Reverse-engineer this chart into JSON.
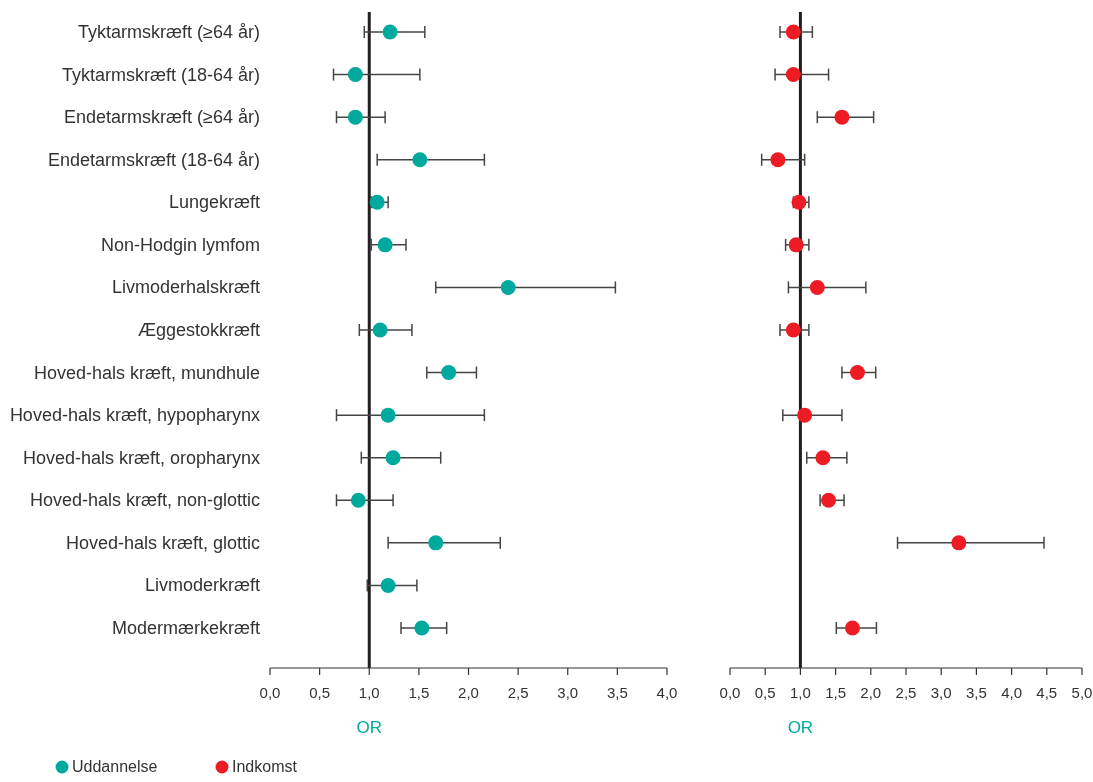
{
  "chart_data": [
    {
      "type": "scatter",
      "orientation": "horizontal",
      "marker": "circle",
      "xlabel": "OR",
      "legend": "bottom left",
      "categories": [
        "Tyktarmskræft (≥64 år)",
        "Tyktarmskræft (18-64 år)",
        "Endetarmskræft (≥64 år)",
        "Endetarmskræft (18-64 år)",
        "Lungekræft",
        "Non-Hodgin lymfom",
        "Livmoderhalskræft",
        "Æggestokkræft",
        "Hoved-hals kræft, mundhule",
        "Hoved-hals kræft, hypopharynx",
        "Hoved-hals kræft, oropharynx",
        "Hoved-hals kræft, non-glottic",
        "Hoved-hals kræft, glottic",
        "Livmoderkræft",
        "Modermærkekræft"
      ],
      "xlim": [
        0,
        4
      ],
      "xticks": [
        {
          "value": 0,
          "label": "0,0"
        },
        {
          "value": 0.5,
          "label": "0,5"
        },
        {
          "value": 1,
          "label": "1,0"
        },
        {
          "value": 1.5,
          "label": "1,5"
        },
        {
          "value": 2,
          "label": "2,0"
        },
        {
          "value": 2.5,
          "label": "2,5"
        },
        {
          "value": 3,
          "label": "3,0"
        },
        {
          "value": 3.5,
          "label": "3,5"
        },
        {
          "value": 4,
          "label": "4,0"
        }
      ],
      "ref_lines": [
        {
          "axis": "x",
          "value": 1,
          "color": "#231f20"
        }
      ],
      "series": [
        {
          "name": "Uddannelse",
          "color": "#00a99d",
          "values": [
            1.21,
            0.86,
            0.86,
            1.51,
            1.08,
            1.16,
            2.4,
            1.11,
            1.8,
            1.19,
            1.24,
            0.89,
            1.67,
            1.19,
            1.53
          ],
          "errors": [
            [
              0.95,
              1.56
            ],
            [
              0.64,
              1.51
            ],
            [
              0.67,
              1.16
            ],
            [
              1.08,
              2.16
            ],
            [
              1.02,
              1.19
            ],
            [
              1.02,
              1.37
            ],
            [
              1.67,
              3.48
            ],
            [
              0.9,
              1.43
            ],
            [
              1.58,
              2.08
            ],
            [
              0.67,
              2.16
            ],
            [
              0.92,
              1.72
            ],
            [
              0.67,
              1.24
            ],
            [
              1.19,
              2.32
            ],
            [
              0.98,
              1.48
            ],
            [
              1.32,
              1.78
            ]
          ]
        }
      ]
    },
    {
      "type": "scatter",
      "orientation": "horizontal",
      "marker": "circle",
      "xlabel": "OR",
      "legend": "bottom left",
      "tick_labels": "x",
      "categories": [
        null,
        null,
        null,
        null,
        null,
        null,
        null,
        null,
        null,
        null,
        null,
        null,
        null,
        null,
        null
      ],
      "xlim": [
        0,
        5
      ],
      "xticks": [
        {
          "value": 0,
          "label": "0,0"
        },
        {
          "value": 0.5,
          "label": "0,5"
        },
        {
          "value": 1,
          "label": "1,0"
        },
        {
          "value": 1.5,
          "label": "1,5"
        },
        {
          "value": 2,
          "label": "2,0"
        },
        {
          "value": 2.5,
          "label": "2,5"
        },
        {
          "value": 3,
          "label": "3,0"
        },
        {
          "value": 3.5,
          "label": "3,5"
        },
        {
          "value": 4,
          "label": "4,0"
        },
        {
          "value": 4.5,
          "label": "4,5"
        },
        {
          "value": 5,
          "label": "5,0"
        }
      ],
      "ref_lines": [
        {
          "axis": "x",
          "value": 1,
          "color": "#231f20"
        }
      ],
      "series": [
        {
          "name": "Indkomst",
          "color": "#ed1c24",
          "values": [
            0.9,
            0.9,
            1.59,
            0.68,
            0.98,
            0.94,
            1.24,
            0.9,
            1.81,
            1.06,
            1.32,
            1.4,
            3.25,
            null,
            1.74
          ],
          "errors": [
            [
              0.71,
              1.17
            ],
            [
              0.64,
              1.4
            ],
            [
              1.24,
              2.04
            ],
            [
              0.45,
              1.06
            ],
            [
              0.9,
              1.12
            ],
            [
              0.79,
              1.12
            ],
            [
              0.83,
              1.93
            ],
            [
              0.71,
              1.12
            ],
            [
              1.59,
              2.07
            ],
            [
              0.75,
              1.59
            ],
            [
              1.09,
              1.66
            ],
            [
              1.28,
              1.62
            ],
            [
              2.38,
              4.46
            ],
            null,
            [
              1.51,
              2.08
            ]
          ]
        }
      ]
    }
  ]
}
